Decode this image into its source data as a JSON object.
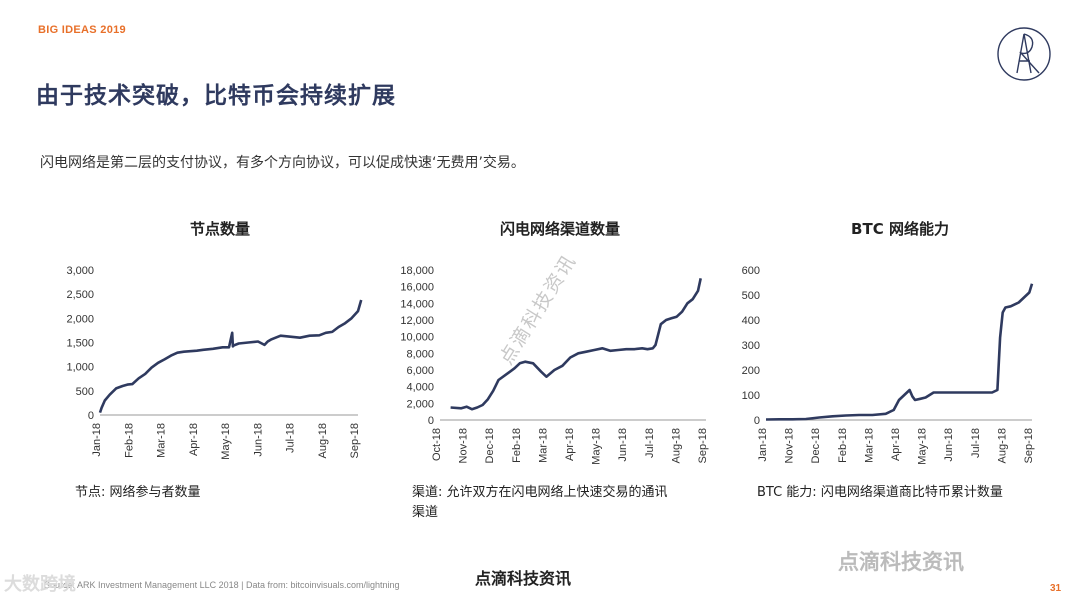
{
  "header": {
    "tag": "BIG IDEAS 2019"
  },
  "title": "由于技术突破，比特币会持续扩展",
  "subtitle": "闪电网络是第二层的支付协议，有多个方向协议，可以促成快速‘无费用’交易。",
  "charts": {
    "nodes": {
      "caption": "节点: 网络参与者数量"
    },
    "channels": {
      "caption": "渠道: 允许双方在闪电网络上快速交易的通讯渠道"
    },
    "capacity": {
      "caption": "BTC 能力: 闪电网络渠道商比特币累计数量"
    }
  },
  "watermark": "点滴科技资讯",
  "footer": {
    "brand": "点滴科技资讯",
    "source": "Source: ARK Investment Management LLC 2018  |  Data from: bitcoinvisuals.com/lightning",
    "wm_left": "大数跨境",
    "wm_right": "点滴科技资讯",
    "page": "31"
  },
  "colors": {
    "accent": "#e8702a",
    "title": "#2f3a5f",
    "line": "#2f3a5f"
  },
  "chart_data": [
    {
      "type": "line",
      "title": "节点数量",
      "ylim": [
        0,
        3000
      ],
      "yticks": [
        "0",
        "500",
        "1,000",
        "1,500",
        "2,000",
        "2,500",
        "3,000"
      ],
      "xticks": [
        "Jan-18",
        "Feb-18",
        "Mar-18",
        "Apr-18",
        "May-18",
        "Jun-18",
        "Jul-18",
        "Aug-18",
        "Sep-18"
      ],
      "x": [
        0,
        0.05,
        0.15,
        0.3,
        0.5,
        0.7,
        0.85,
        1,
        1.2,
        1.4,
        1.6,
        1.8,
        2.0,
        2.2,
        2.4,
        2.6,
        2.8,
        3.0,
        3.2,
        3.5,
        3.8,
        4.0,
        4.1,
        4.12,
        4.15,
        4.3,
        4.6,
        4.9,
        5.1,
        5.2,
        5.3,
        5.6,
        5.9,
        6.2,
        6.5,
        6.8,
        7.0,
        7.2,
        7.4,
        7.6,
        7.8,
        8.0,
        8.1
      ],
      "values": [
        50,
        150,
        300,
        420,
        550,
        600,
        630,
        640,
        760,
        850,
        980,
        1080,
        1150,
        1230,
        1290,
        1310,
        1320,
        1330,
        1350,
        1370,
        1400,
        1400,
        1700,
        1420,
        1440,
        1480,
        1500,
        1520,
        1450,
        1520,
        1560,
        1640,
        1620,
        1600,
        1640,
        1650,
        1700,
        1720,
        1820,
        1900,
        2000,
        2150,
        2380
      ]
    },
    {
      "type": "line",
      "title": "闪电网络渠道数量",
      "ylim": [
        0,
        18000
      ],
      "yticks": [
        "0",
        "2,000",
        "4,000",
        "6,000",
        "8,000",
        "10,000",
        "12,000",
        "14,000",
        "16,000",
        "18,000"
      ],
      "xticks": [
        "Oct-18",
        "Nov-18",
        "Dec-18",
        "Feb-18",
        "Mar-18",
        "Apr-18",
        "May-18",
        "Jun-18",
        "Jul-18",
        "Aug-18",
        "Sep-18"
      ],
      "x": [
        0.4,
        0.8,
        1.0,
        1.2,
        1.4,
        1.6,
        1.8,
        2.0,
        2.2,
        2.5,
        2.8,
        3.0,
        3.2,
        3.5,
        3.8,
        4.0,
        4.3,
        4.6,
        4.9,
        5.2,
        5.5,
        5.8,
        6.1,
        6.4,
        6.7,
        7.0,
        7.3,
        7.6,
        7.8,
        8.0,
        8.1,
        8.3,
        8.5,
        8.7,
        8.9,
        9.1,
        9.3,
        9.5,
        9.7,
        9.8
      ],
      "values": [
        1500,
        1400,
        1600,
        1300,
        1500,
        1800,
        2500,
        3500,
        4800,
        5500,
        6200,
        6800,
        7000,
        6800,
        5800,
        5200,
        6000,
        6500,
        7500,
        8000,
        8200,
        8400,
        8600,
        8300,
        8400,
        8500,
        8500,
        8600,
        8500,
        8600,
        9000,
        11500,
        12000,
        12200,
        12400,
        13000,
        14000,
        14500,
        15500,
        17000
      ]
    },
    {
      "type": "line",
      "title": "BTC 网络能力",
      "ylim": [
        0,
        600
      ],
      "yticks": [
        "0",
        "100",
        "200",
        "300",
        "400",
        "500",
        "600"
      ],
      "xticks": [
        "Jan-18",
        "Nov-18",
        "Dec-18",
        "Feb-18",
        "Mar-18",
        "Apr-18",
        "May-18",
        "Jun-18",
        "Jul-18",
        "Aug-18",
        "Sep-18"
      ],
      "x": [
        0,
        0.5,
        1.0,
        1.5,
        2.0,
        2.5,
        3.0,
        3.5,
        4.0,
        4.5,
        4.8,
        5.0,
        5.2,
        5.4,
        5.5,
        5.6,
        5.8,
        6.0,
        6.3,
        6.6,
        7.0,
        7.5,
        8.0,
        8.3,
        8.5,
        8.7,
        8.8,
        8.9,
        9.0,
        9.2,
        9.5,
        9.7,
        9.9,
        10.0
      ],
      "values": [
        2,
        3,
        3,
        4,
        10,
        15,
        18,
        20,
        20,
        25,
        40,
        80,
        100,
        120,
        95,
        80,
        85,
        90,
        110,
        110,
        110,
        110,
        110,
        110,
        110,
        120,
        330,
        430,
        450,
        455,
        470,
        490,
        510,
        545
      ]
    }
  ]
}
